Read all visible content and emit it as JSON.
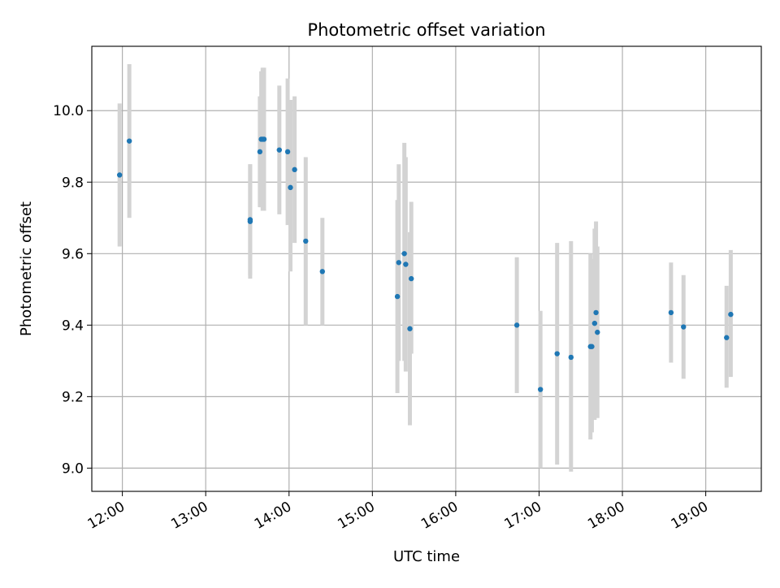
{
  "chart_data": {
    "type": "scatter",
    "title": "Photometric offset variation",
    "xlabel": "UTC time",
    "ylabel": "Photometric offset",
    "x_ticks": [
      "12:00",
      "13:00",
      "14:00",
      "15:00",
      "16:00",
      "17:00",
      "18:00",
      "19:00"
    ],
    "y_ticks": [
      "9.0",
      "9.2",
      "9.4",
      "9.6",
      "9.8",
      "10.0"
    ],
    "xlim": [
      "11:38",
      "19:40"
    ],
    "ylim": [
      8.935,
      10.18
    ],
    "grid": true,
    "legend": "none",
    "colors": {
      "point": "#1f77b4",
      "errorbar": "#d3d3d3",
      "grid": "#b0b0b0"
    },
    "points": [
      {
        "t": "11:58",
        "y": 9.82,
        "lo": 9.62,
        "hi": 10.02
      },
      {
        "t": "12:05",
        "y": 9.915,
        "lo": 9.7,
        "hi": 10.13
      },
      {
        "t": "13:32",
        "y": 9.69,
        "lo": 9.53,
        "hi": 9.85
      },
      {
        "t": "13:32",
        "y": 9.695,
        "lo": 9.54,
        "hi": 9.85
      },
      {
        "t": "13:39",
        "y": 9.885,
        "lo": 9.73,
        "hi": 10.04
      },
      {
        "t": "13:40",
        "y": 9.92,
        "lo": 9.73,
        "hi": 10.11
      },
      {
        "t": "13:41",
        "y": 9.92,
        "lo": 9.72,
        "hi": 10.12
      },
      {
        "t": "13:42",
        "y": 9.92,
        "lo": 9.72,
        "hi": 10.12
      },
      {
        "t": "13:53",
        "y": 9.89,
        "lo": 9.71,
        "hi": 10.07
      },
      {
        "t": "13:59",
        "y": 9.885,
        "lo": 9.68,
        "hi": 10.09
      },
      {
        "t": "14:01",
        "y": 9.785,
        "lo": 9.55,
        "hi": 10.03
      },
      {
        "t": "14:04",
        "y": 9.835,
        "lo": 9.63,
        "hi": 10.04
      },
      {
        "t": "14:12",
        "y": 9.635,
        "lo": 9.4,
        "hi": 9.87
      },
      {
        "t": "14:24",
        "y": 9.55,
        "lo": 9.4,
        "hi": 9.7
      },
      {
        "t": "15:18",
        "y": 9.48,
        "lo": 9.21,
        "hi": 9.75
      },
      {
        "t": "15:19",
        "y": 9.575,
        "lo": 9.3,
        "hi": 9.85
      },
      {
        "t": "15:23",
        "y": 9.6,
        "lo": 9.3,
        "hi": 9.91
      },
      {
        "t": "15:24",
        "y": 9.57,
        "lo": 9.27,
        "hi": 9.87
      },
      {
        "t": "15:27",
        "y": 9.39,
        "lo": 9.12,
        "hi": 9.66
      },
      {
        "t": "15:28",
        "y": 9.53,
        "lo": 9.32,
        "hi": 9.745
      },
      {
        "t": "16:44",
        "y": 9.4,
        "lo": 9.21,
        "hi": 9.59
      },
      {
        "t": "17:01",
        "y": 9.22,
        "lo": 9.0,
        "hi": 9.44
      },
      {
        "t": "17:13",
        "y": 9.32,
        "lo": 9.01,
        "hi": 9.63
      },
      {
        "t": "17:23",
        "y": 9.31,
        "lo": 8.99,
        "hi": 9.635
      },
      {
        "t": "17:37",
        "y": 9.34,
        "lo": 9.08,
        "hi": 9.6
      },
      {
        "t": "17:38",
        "y": 9.34,
        "lo": 9.1,
        "hi": 9.585
      },
      {
        "t": "17:40",
        "y": 9.405,
        "lo": 9.135,
        "hi": 9.67
      },
      {
        "t": "17:41",
        "y": 9.435,
        "lo": 9.18,
        "hi": 9.69
      },
      {
        "t": "17:42",
        "y": 9.38,
        "lo": 9.14,
        "hi": 9.62
      },
      {
        "t": "18:35",
        "y": 9.435,
        "lo": 9.295,
        "hi": 9.575
      },
      {
        "t": "18:44",
        "y": 9.395,
        "lo": 9.25,
        "hi": 9.54
      },
      {
        "t": "19:15",
        "y": 9.365,
        "lo": 9.225,
        "hi": 9.51
      },
      {
        "t": "19:18",
        "y": 9.43,
        "lo": 9.255,
        "hi": 9.61
      }
    ]
  }
}
